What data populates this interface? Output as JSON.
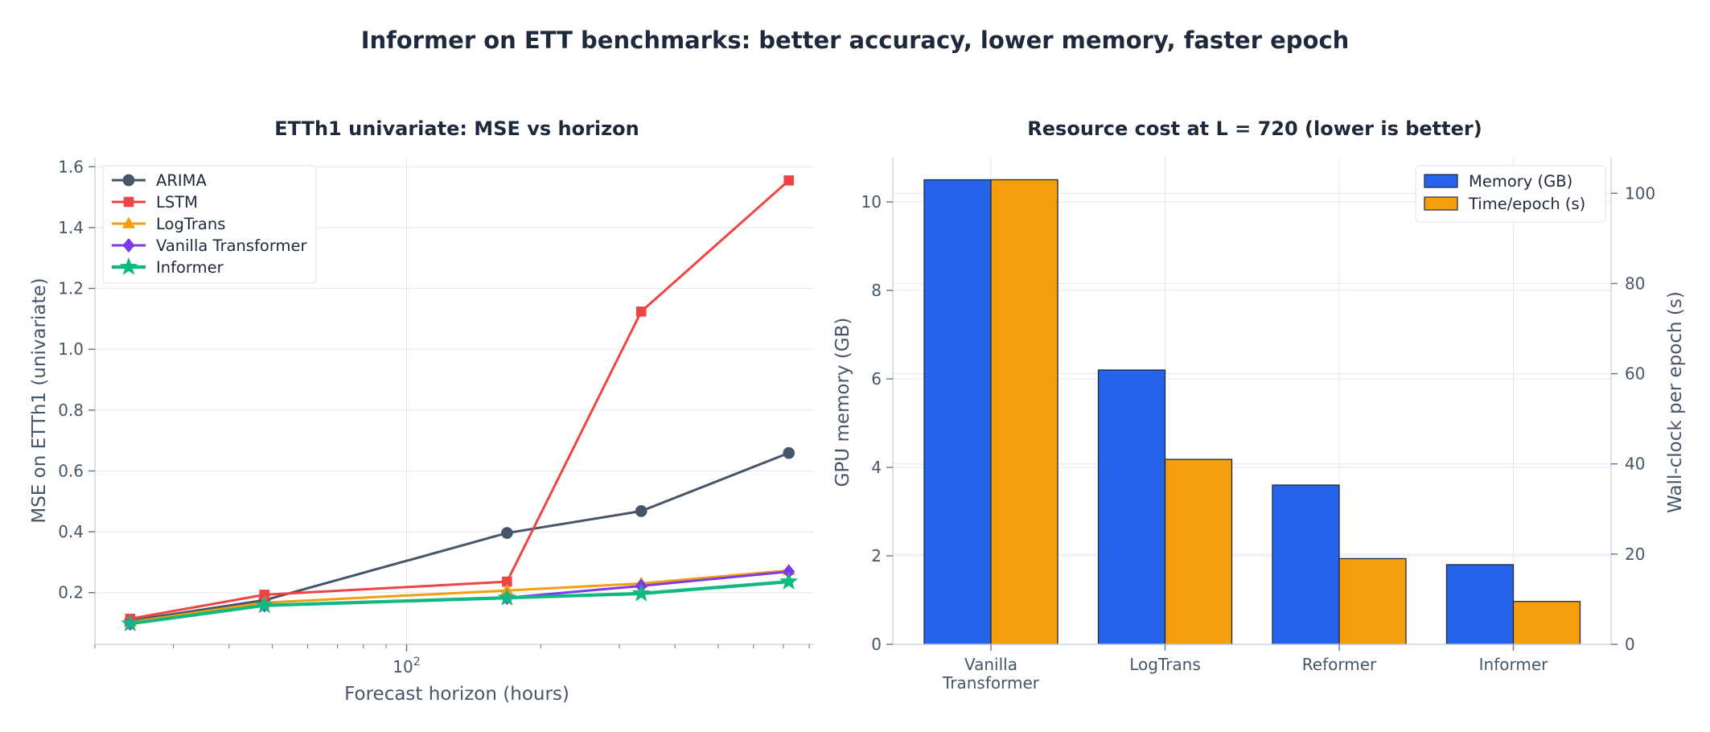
{
  "figure": {
    "title": "Informer on ETT benchmarks: better accuracy, lower memory, faster epoch"
  },
  "chart_data": [
    {
      "type": "line",
      "title": "ETTh1 univariate: MSE vs horizon",
      "xlabel": "Forecast horizon (hours)",
      "ylabel": "MSE on ETTh1 (univariate)",
      "xscale": "log",
      "xlim": [
        20,
        820
      ],
      "ylim": [
        0.03,
        1.63
      ],
      "x_ticks": [
        {
          "value": 100,
          "label": "10",
          "exp": "2"
        }
      ],
      "y_ticks": [
        0.2,
        0.4,
        0.6,
        0.8,
        1.0,
        1.2,
        1.4,
        1.6
      ],
      "y_tick_labels": [
        "0.2",
        "0.4",
        "0.6",
        "0.8",
        "1.0",
        "1.2",
        "1.4",
        "1.6"
      ],
      "grid": true,
      "legend": "top-left",
      "x": [
        24,
        48,
        168,
        336,
        720
      ],
      "series": [
        {
          "name": "ARIMA",
          "values": [
            0.108,
            0.175,
            0.396,
            0.468,
            0.659
          ],
          "color": "#475569",
          "marker": "circle"
        },
        {
          "name": "LSTM",
          "values": [
            0.114,
            0.193,
            0.236,
            1.124,
            1.555
          ],
          "color": "#ef4444",
          "marker": "square"
        },
        {
          "name": "LogTrans",
          "values": [
            0.103,
            0.167,
            0.207,
            0.23,
            0.273
          ],
          "color": "#f59e0b",
          "marker": "triangle"
        },
        {
          "name": "Vanilla Transformer",
          "values": [
            0.098,
            0.158,
            0.183,
            0.222,
            0.269
          ],
          "color": "#7c3aed",
          "marker": "diamond"
        },
        {
          "name": "Informer",
          "values": [
            0.098,
            0.158,
            0.183,
            0.197,
            0.236
          ],
          "color": "#10b981",
          "marker": "star"
        }
      ]
    },
    {
      "type": "bar",
      "title": "Resource cost at L = 720 (lower is better)",
      "categories": [
        [
          "Vanilla",
          "Transformer"
        ],
        [
          "LogTrans"
        ],
        [
          "Reformer"
        ],
        [
          "Informer"
        ]
      ],
      "ylabel": "GPU memory (GB)",
      "y2label": "Wall-clock per epoch (s)",
      "ylim": [
        0,
        11.0
      ],
      "y2lim": [
        0,
        107.9
      ],
      "y_ticks": [
        0,
        2,
        4,
        6,
        8,
        10
      ],
      "y2_ticks": [
        0,
        20,
        40,
        60,
        80,
        100
      ],
      "grid": true,
      "legend": "top-right",
      "series": [
        {
          "name": "Memory (GB)",
          "axis": "left",
          "values": [
            10.5,
            6.2,
            3.6,
            1.8
          ],
          "color": "#2563eb"
        },
        {
          "name": "Time/epoch (s)",
          "axis": "right",
          "values": [
            103,
            41,
            19,
            9.5
          ],
          "color": "#f59e0b"
        }
      ]
    }
  ]
}
